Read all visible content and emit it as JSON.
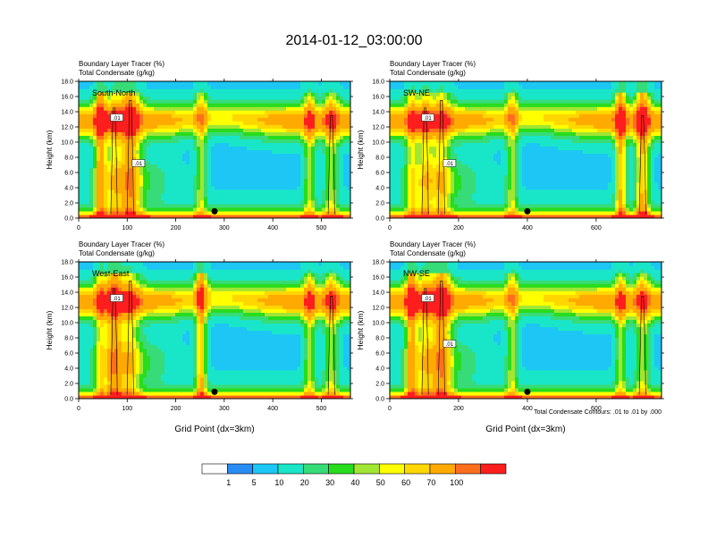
{
  "title": "2014-01-12_03:00:00",
  "colors": {
    "fill_levels": [
      "#ffffff",
      "#2a8cf5",
      "#1dc6f5",
      "#19e6c8",
      "#37dc78",
      "#28dc1e",
      "#a0e632",
      "#ffff00",
      "#ffd700",
      "#ffaa00",
      "#ff6e1e",
      "#ff1e1e"
    ],
    "contour": "#000000"
  },
  "colorbar": {
    "labels": [
      "1",
      "5",
      "10",
      "20",
      "30",
      "40",
      "50",
      "60",
      "70",
      "100"
    ]
  },
  "footnote": "Total Condensate Contours: .01 to .01 by .000",
  "chart_data": [
    {
      "type": "heatmap",
      "panel": "South-North",
      "label": "South-North",
      "subtitle_lines": [
        "Boundary Layer Tracer    (%)",
        "Total Condensate    (g/kg)"
      ],
      "ylabel": "Height (km)",
      "xlabel": "",
      "xlim": [
        0,
        560
      ],
      "ylim": [
        0,
        18
      ],
      "xticks": [
        "0",
        "100",
        "200",
        "300",
        "400",
        "500"
      ],
      "yticks": [
        "0.0",
        "2.0",
        "4.0",
        "6.0",
        "8.0",
        "10.0",
        "12.0",
        "14.0",
        "16.0",
        "18.0"
      ],
      "marker_x": 280,
      "contour_labels": [
        ".01",
        ".01"
      ]
    },
    {
      "type": "heatmap",
      "panel": "SW-NE",
      "label": "SW-NE",
      "subtitle_lines": [
        "Boundary Layer Tracer    (%)",
        "Total Condensate    (g/kg)"
      ],
      "ylabel": "Height (km)",
      "xlabel": "",
      "xlim": [
        0,
        790
      ],
      "ylim": [
        0,
        18
      ],
      "xticks": [
        "0",
        "200",
        "400",
        "600"
      ],
      "yticks": [
        "0.0",
        "2.0",
        "4.0",
        "6.0",
        "8.0",
        "10.0",
        "12.0",
        "14.0",
        "16.0",
        "18.0"
      ],
      "marker_x": 400,
      "contour_labels": [
        ".01",
        ".01"
      ]
    },
    {
      "type": "heatmap",
      "panel": "West-East",
      "label": "West-East",
      "subtitle_lines": [
        "Boundary Layer Tracer    (%)",
        "Total Condensate    (g/kg)"
      ],
      "ylabel": "Height (km)",
      "xlabel": "Grid Point (dx=3km)",
      "xlim": [
        0,
        560
      ],
      "ylim": [
        0,
        18
      ],
      "xticks": [
        "0",
        "100",
        "200",
        "300",
        "400",
        "500"
      ],
      "yticks": [
        "0.0",
        "2.0",
        "4.0",
        "6.0",
        "8.0",
        "10.0",
        "12.0",
        "14.0",
        "16.0",
        "18.0"
      ],
      "marker_x": 280,
      "contour_labels": [
        ".01"
      ]
    },
    {
      "type": "heatmap",
      "panel": "NW-SE",
      "label": "NW-SE",
      "subtitle_lines": [
        "Boundary Layer Tracer    (%)",
        "Total Condensate    (g/kg)"
      ],
      "ylabel": "Height (km)",
      "xlabel": "Grid Point (dx=3km)",
      "xlim": [
        0,
        790
      ],
      "ylim": [
        0,
        18
      ],
      "xticks": [
        "0",
        "200",
        "400",
        "600"
      ],
      "yticks": [
        "0.0",
        "2.0",
        "4.0",
        "6.0",
        "8.0",
        "10.0",
        "12.0",
        "14.0",
        "16.0",
        "18.0"
      ],
      "marker_x": 400,
      "contour_labels": [
        ".01",
        ".01"
      ]
    }
  ]
}
